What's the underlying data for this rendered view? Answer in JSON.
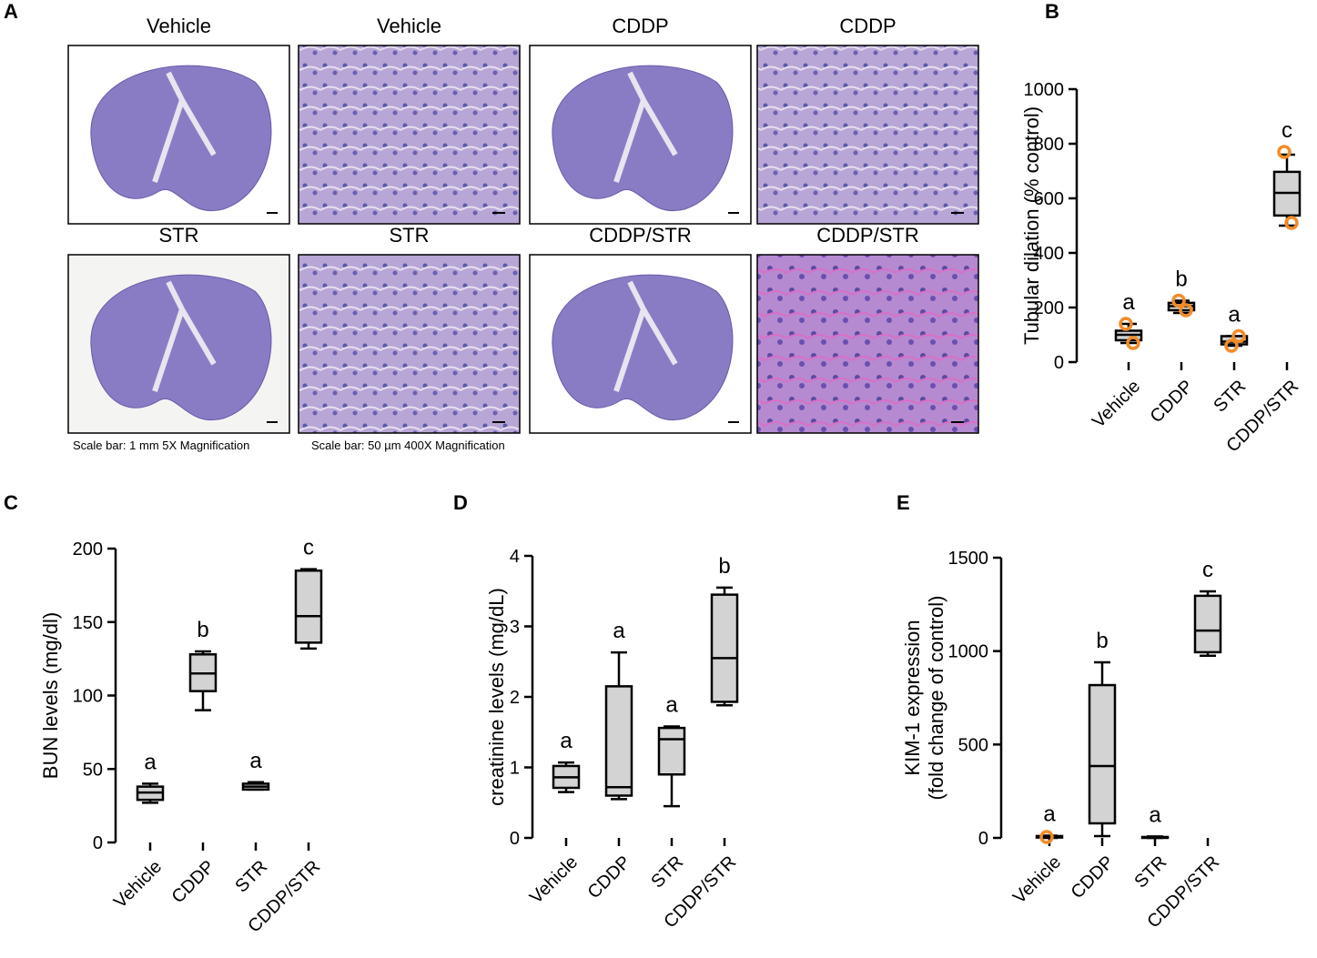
{
  "panel_a": {
    "label": "A",
    "images": [
      "Vehicle",
      "Vehicle",
      "CDDP",
      "CDDP",
      "STR",
      "STR",
      "CDDP/STR",
      "CDDP/STR"
    ],
    "notes": [
      "Scale bar: 1 mm  5X Magnification",
      "Scale bar: 50 µm  400X Magnification"
    ]
  },
  "chart_data": [
    {
      "type": "box",
      "panel": "B",
      "y_label": [
        "Tubular dilation (% control)"
      ],
      "categories": [
        "Vehicle",
        "CDDP",
        "STR",
        "CDDP/STR"
      ],
      "min": [
        70,
        180,
        60,
        500
      ],
      "q1": [
        80,
        190,
        65,
        537
      ],
      "median": [
        100,
        205,
        75,
        620
      ],
      "q3": [
        115,
        217,
        95,
        697
      ],
      "max": [
        140,
        225,
        95,
        760
      ],
      "points": [
        [
          140,
          70
        ],
        [
          225,
          190
        ],
        [
          60,
          95
        ],
        [
          770,
          510
        ]
      ],
      "letters": [
        "a",
        "b",
        "a",
        "c"
      ],
      "ylim": [
        0,
        1000
      ],
      "yticks": [
        0,
        200,
        400,
        600,
        800,
        1000
      ],
      "color": "#d3d3d3",
      "point_color": "#f28c28"
    },
    {
      "type": "box",
      "panel": "C",
      "y_label": [
        "BUN levels (mg/dl)"
      ],
      "categories": [
        "Vehicle",
        "CDDP",
        "STR",
        "CDDP/STR"
      ],
      "min": [
        27,
        90,
        36,
        132
      ],
      "q1": [
        29,
        103,
        36,
        136
      ],
      "median": [
        34,
        115,
        38,
        154
      ],
      "q3": [
        38,
        128,
        40,
        185
      ],
      "max": [
        40,
        130,
        41,
        186
      ],
      "letters": [
        "a",
        "b",
        "a",
        "c"
      ],
      "ylim": [
        0,
        200
      ],
      "yticks": [
        0,
        50,
        100,
        150,
        200
      ],
      "color": "#d3d3d3"
    },
    {
      "type": "box",
      "panel": "D",
      "y_label": [
        "creatinine levels (mg/dL)"
      ],
      "categories": [
        "Vehicle",
        "CDDP",
        "STR",
        "CDDP/STR"
      ],
      "min": [
        0.65,
        0.55,
        0.45,
        1.88
      ],
      "q1": [
        0.71,
        0.6,
        0.9,
        1.93
      ],
      "median": [
        0.86,
        0.72,
        1.4,
        2.55
      ],
      "q3": [
        1.02,
        2.15,
        1.56,
        3.45
      ],
      "max": [
        1.07,
        2.63,
        1.58,
        3.55
      ],
      "letters": [
        "a",
        "a",
        "a",
        "b"
      ],
      "ylim": [
        0,
        4
      ],
      "yticks": [
        0,
        1,
        2,
        3,
        4
      ],
      "color": "#d3d3d3"
    },
    {
      "type": "box",
      "panel": "E",
      "y_label": [
        "KIM-1 expression",
        "(fold change of control)"
      ],
      "categories": [
        "Vehicle",
        "CDDP",
        "STR",
        "CDDP/STR"
      ],
      "min": [
        0,
        10,
        0,
        975
      ],
      "q1": [
        2,
        78,
        1,
        994
      ],
      "median": [
        5,
        385,
        3,
        1110
      ],
      "q3": [
        10,
        818,
        5,
        1296
      ],
      "max": [
        12,
        940,
        8,
        1320
      ],
      "points": [
        [
          5
        ],
        [],
        [],
        []
      ],
      "letters": [
        "a",
        "b",
        "a",
        "c"
      ],
      "ylim": [
        0,
        1500
      ],
      "yticks": [
        0,
        500,
        1000,
        1500
      ],
      "color": "#d3d3d3",
      "point_color": "#f28c28"
    }
  ]
}
